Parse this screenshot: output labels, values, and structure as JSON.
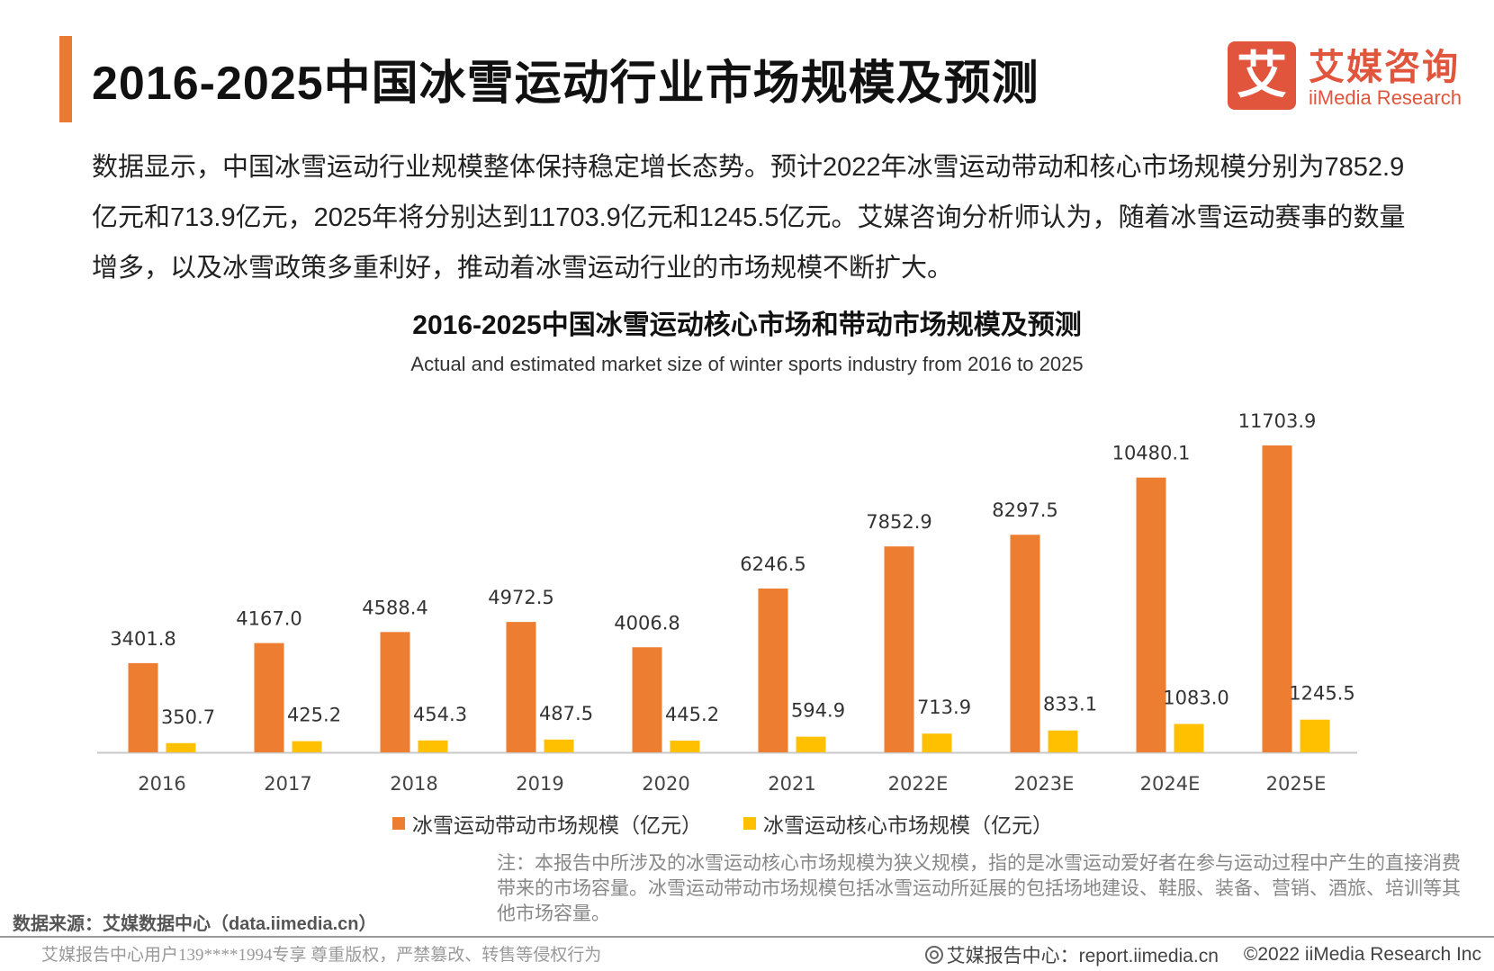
{
  "header": {
    "title": "2016-2025中国冰雪运动行业市场规模及预测"
  },
  "logo": {
    "mark": "艾",
    "name_cn": "艾媒咨询",
    "name_en": "iiMedia Research"
  },
  "intro_text": "数据显示，中国冰雪运动行业规模整体保持稳定增长态势。预计2022年冰雪运动带动和核心市场规模分别为7852.9亿元和713.9亿元，2025年将分别达到11703.9亿元和1245.5亿元。艾媒咨询分析师认为，随着冰雪运动赛事的数量增多，以及冰雪政策多重利好，推动着冰雪运动行业的市场规模不断扩大。",
  "chart_data": {
    "type": "bar",
    "title": "2016-2025中国冰雪运动核心市场和带动市场规模及预测",
    "subtitle": "Actual and estimated market size of winter sports industry from 2016 to 2025",
    "categories": [
      "2016",
      "2017",
      "2018",
      "2019",
      "2020",
      "2021",
      "2022E",
      "2023E",
      "2024E",
      "2025E"
    ],
    "series": [
      {
        "name": "冰雪运动带动市场规模（亿元）",
        "color": "#ed7d31",
        "values": [
          3401.8,
          4167.0,
          4588.4,
          4972.5,
          4006.8,
          6246.5,
          7852.9,
          8297.5,
          10480.1,
          11703.9
        ],
        "labels": [
          "3401.8",
          "4167.0",
          "4588.4",
          "4972.5",
          "4006.8",
          "6246.5",
          "7852.9",
          "8297.5",
          "10480.1",
          "11703.9"
        ]
      },
      {
        "name": "冰雪运动核心市场规模（亿元）",
        "color": "#ffc000",
        "values": [
          350.7,
          425.2,
          454.3,
          487.5,
          445.2,
          594.9,
          713.9,
          833.1,
          1083.0,
          1245.5
        ],
        "labels": [
          "350.7",
          "425.2",
          "454.3",
          "487.5",
          "445.2",
          "594.9",
          "713.9",
          "833.1",
          "1083.0",
          "1245.5"
        ]
      }
    ],
    "ylim": [
      0,
      12000
    ],
    "grid": false,
    "legend_position": "bottom"
  },
  "note": "注：本报告中所涉及的冰雪运动核心市场规模为狭义规模，指的是冰雪运动爱好者在参与运动过程中产生的直接消费带来的市场容量。冰雪运动带动市场规模包括冰雪运动所延展的包括场地建设、鞋服、装备、营销、酒旅、培训等其他市场容量。",
  "source": "数据来源：艾媒数据中心（data.iimedia.cn）",
  "footer": {
    "left": "艾媒报告中心用户139****1994专享 尊重版权，严禁篡改、转售等侵权行为",
    "right_site": "艾媒报告中心：report.iimedia.cn",
    "right_copy": "©2022  iiMedia Research  Inc"
  }
}
